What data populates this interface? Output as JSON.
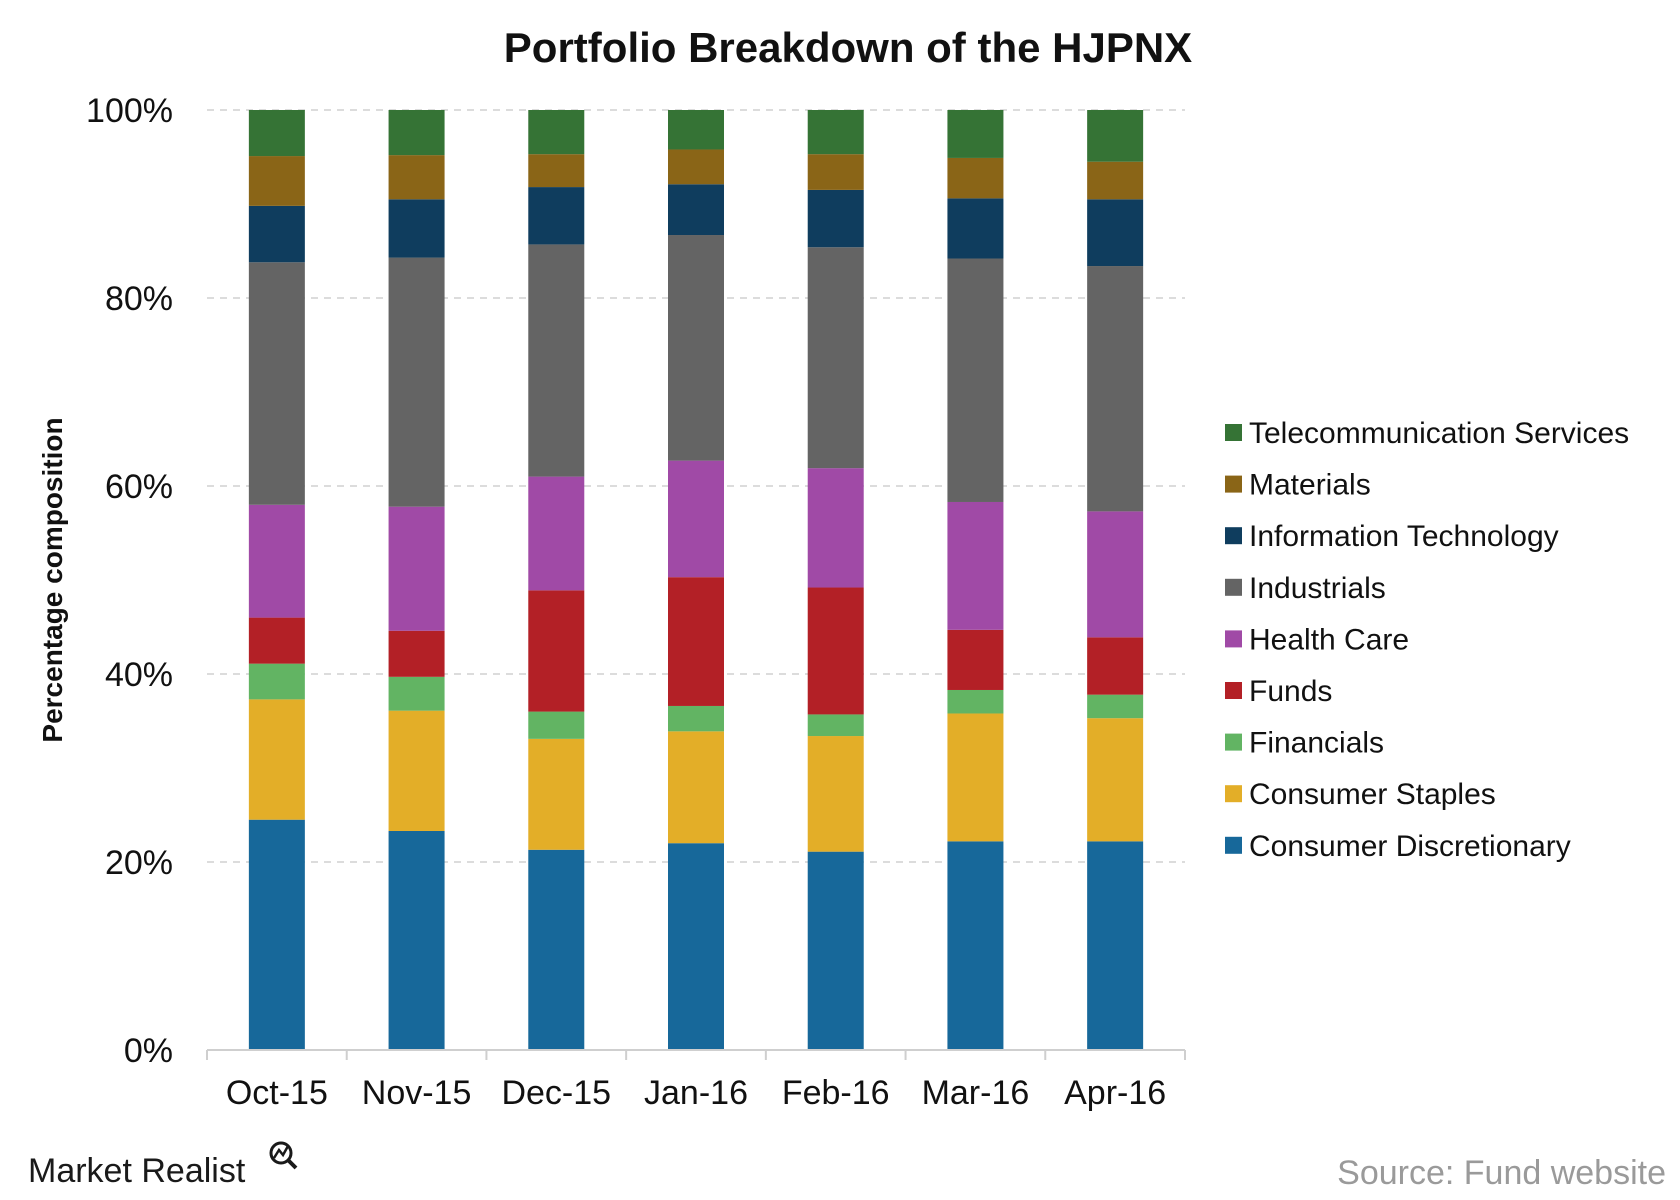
{
  "chart_data": {
    "type": "bar",
    "stacked": true,
    "title": "Portfolio Breakdown of the HJPNX",
    "ylabel": "Percentage composition",
    "xlabel": "",
    "ylim": [
      0,
      100
    ],
    "yticks": [
      "0%",
      "20%",
      "40%",
      "60%",
      "80%",
      "100%"
    ],
    "grid": true,
    "legend_position": "right",
    "categories": [
      "Oct-15",
      "Nov-15",
      "Dec-15",
      "Jan-16",
      "Feb-16",
      "Mar-16",
      "Apr-16"
    ],
    "series": [
      {
        "name": "Consumer Discretionary",
        "color": "#17689a",
        "values": [
          24.5,
          23.3,
          21.3,
          22.0,
          21.1,
          22.2,
          22.2
        ]
      },
      {
        "name": "Consumer Staples",
        "color": "#e3ae28",
        "values": [
          12.8,
          12.8,
          11.8,
          11.9,
          12.3,
          13.6,
          13.1
        ]
      },
      {
        "name": "Financials",
        "color": "#62b463",
        "values": [
          3.8,
          3.6,
          2.9,
          2.7,
          2.3,
          2.5,
          2.5
        ]
      },
      {
        "name": "Funds",
        "color": "#b32026",
        "values": [
          4.9,
          4.9,
          12.9,
          13.7,
          13.5,
          6.4,
          6.1
        ]
      },
      {
        "name": "Health Care",
        "color": "#a04aa6",
        "values": [
          12.0,
          13.2,
          12.1,
          12.4,
          12.7,
          13.6,
          13.4
        ]
      },
      {
        "name": "Industrials",
        "color": "#646464",
        "values": [
          25.8,
          26.5,
          24.7,
          24.0,
          23.5,
          25.9,
          26.1
        ]
      },
      {
        "name": "Information Technology",
        "color": "#0f3d5e",
        "values": [
          6.0,
          6.2,
          6.1,
          5.4,
          6.1,
          6.4,
          7.1
        ]
      },
      {
        "name": "Materials",
        "color": "#8a6517",
        "values": [
          5.3,
          4.7,
          3.5,
          3.7,
          3.8,
          4.3,
          4.0
        ]
      },
      {
        "name": "Telecommunication Services",
        "color": "#357335",
        "values": [
          4.9,
          4.8,
          4.7,
          4.2,
          4.7,
          5.1,
          5.5
        ]
      }
    ]
  },
  "footer": {
    "brand": "Market Realist",
    "source": "Source: Fund website"
  }
}
